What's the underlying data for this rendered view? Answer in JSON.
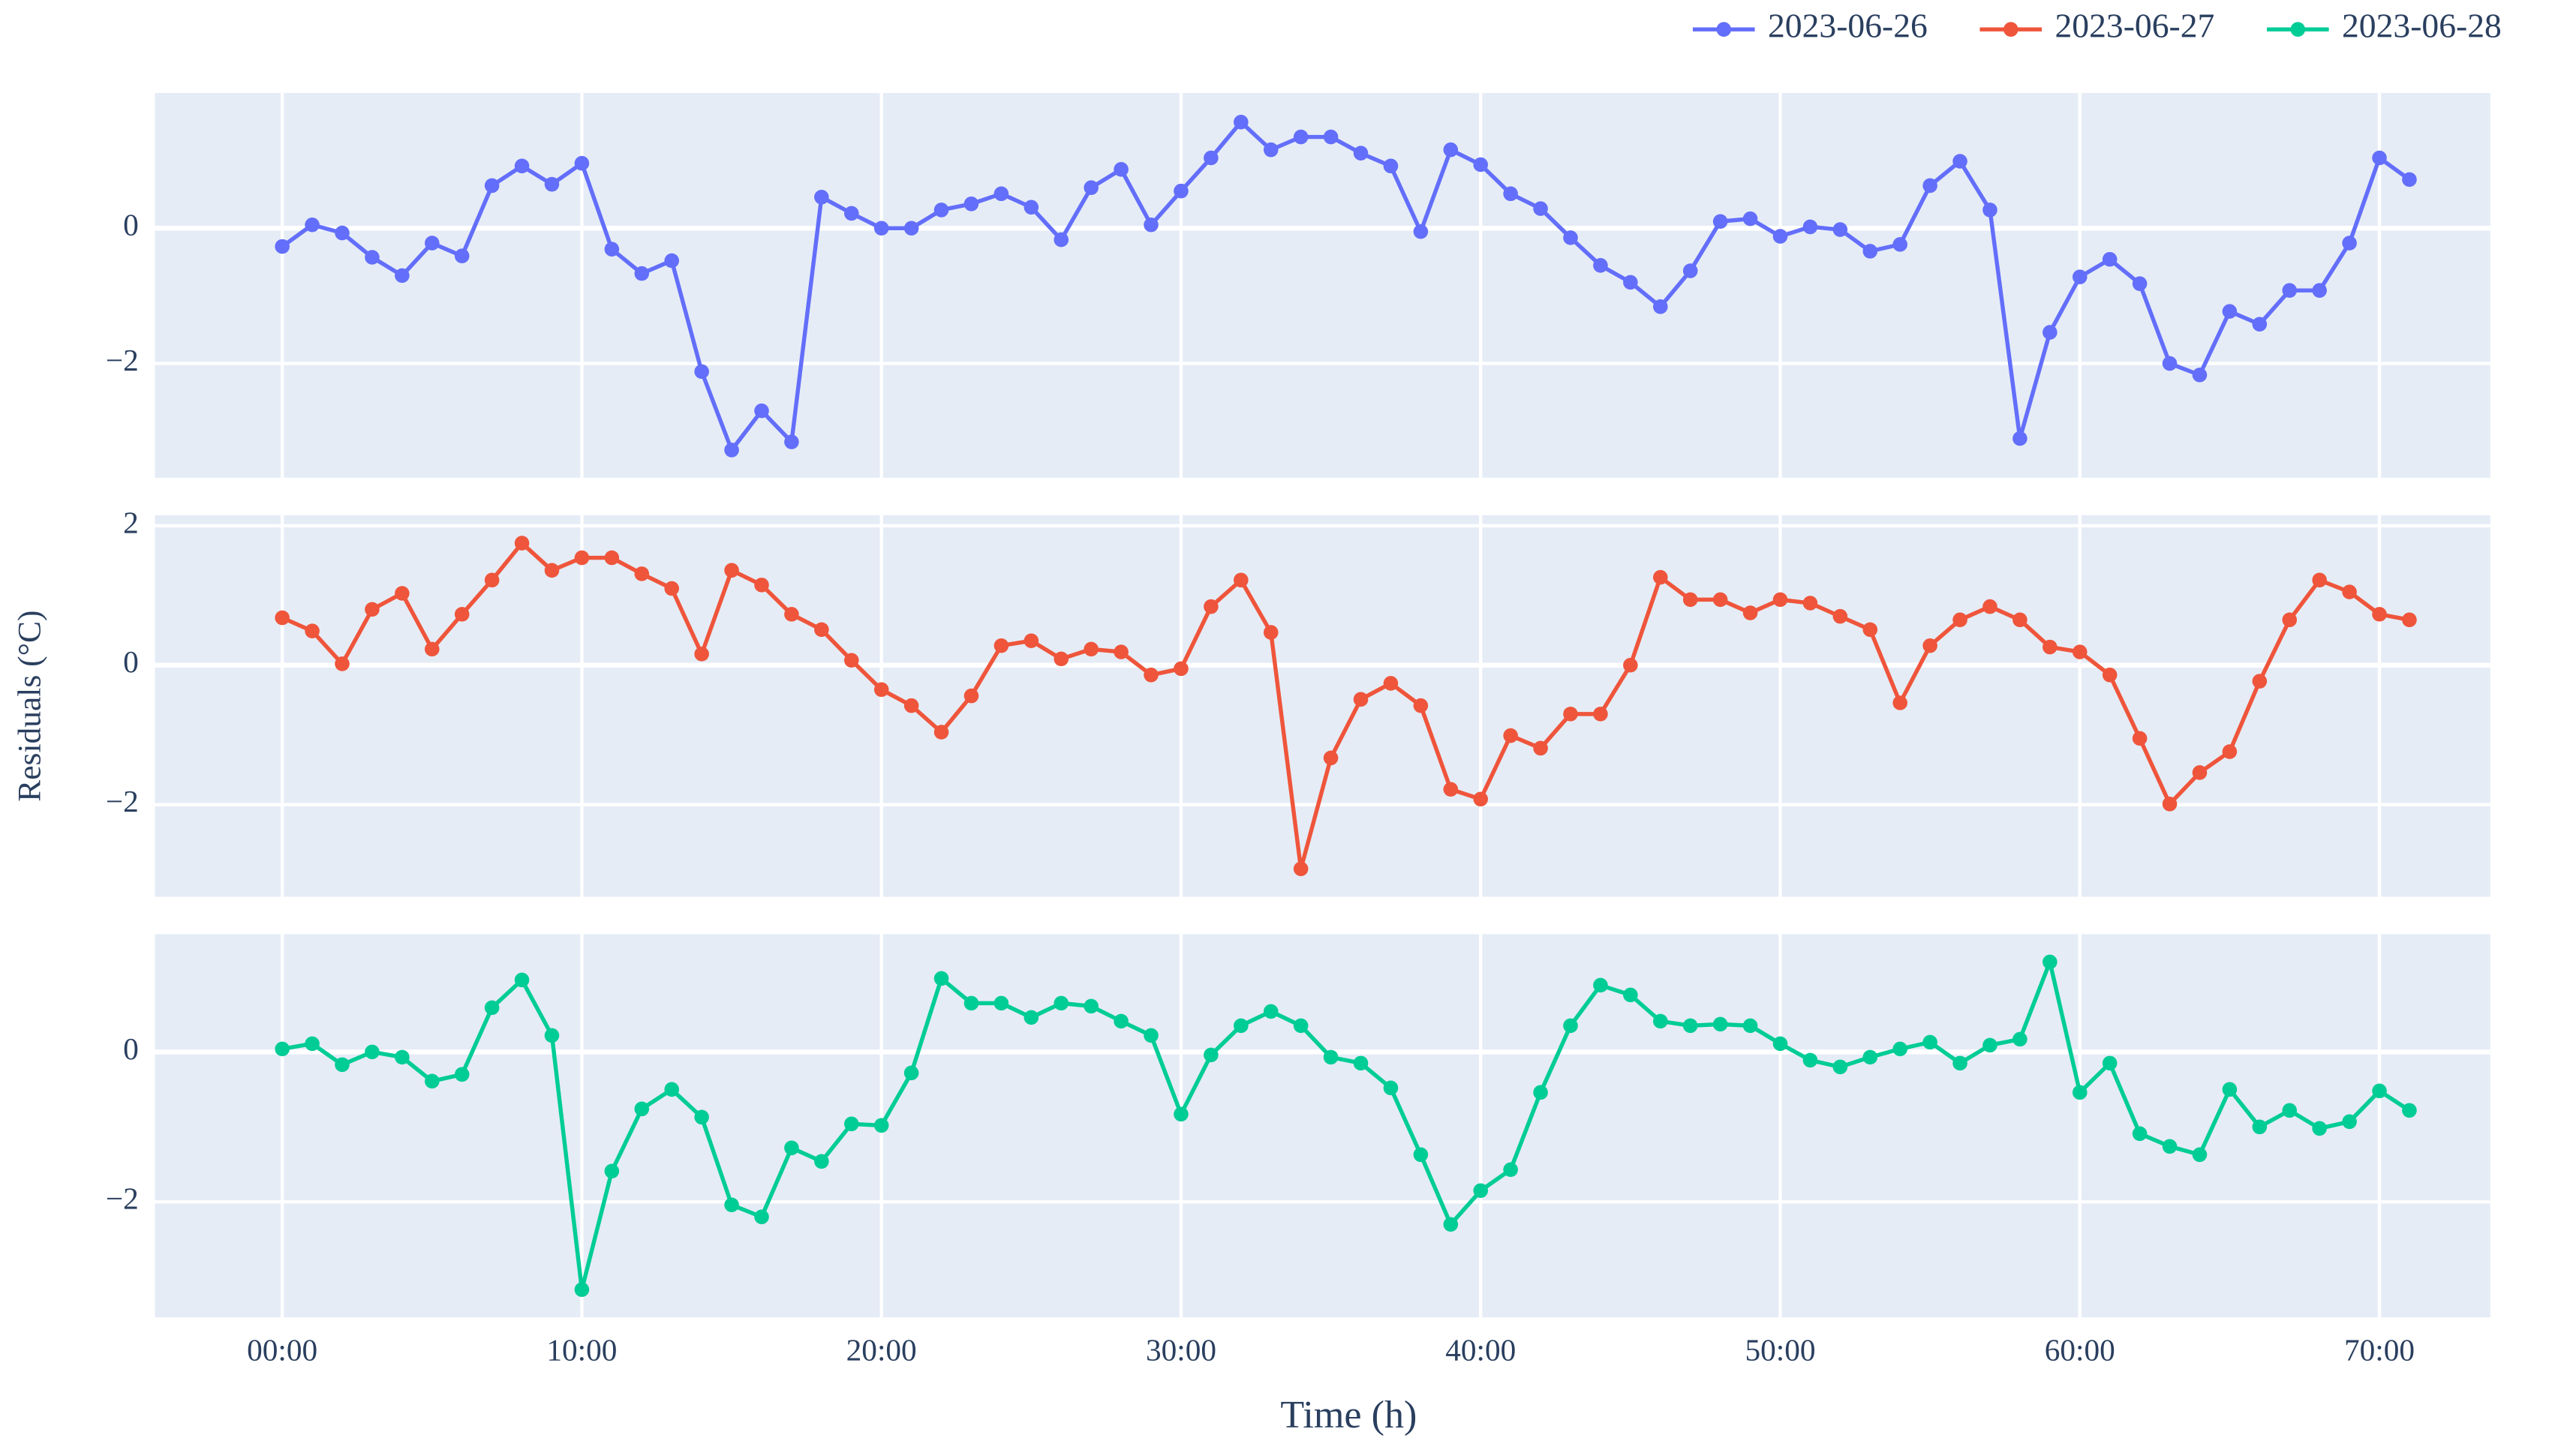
{
  "chart_data": {
    "type": "line",
    "xlabel": "Time (h)",
    "ylabel": "Residuals (°C)",
    "x": [
      0,
      1,
      2,
      3,
      4,
      5,
      6,
      7,
      8,
      9,
      10,
      11,
      12,
      13,
      14,
      15,
      16,
      17,
      18,
      19,
      20,
      21,
      22,
      23,
      24,
      25,
      26,
      27,
      28,
      29,
      30,
      31,
      32,
      33,
      34,
      35,
      36,
      37,
      38,
      39,
      40,
      41,
      42,
      43,
      44,
      45,
      46,
      47,
      48,
      49,
      50,
      51,
      52,
      53,
      54,
      55,
      56,
      57,
      58,
      59,
      60,
      61,
      62,
      63,
      64,
      65,
      66,
      67,
      68,
      69,
      70,
      71
    ],
    "xlim": [
      -4.25,
      73.7
    ],
    "xticks": [
      {
        "value": 0,
        "label": "00:00"
      },
      {
        "value": 10,
        "label": "10:00"
      },
      {
        "value": 20,
        "label": "20:00"
      },
      {
        "value": 30,
        "label": "30:00"
      },
      {
        "value": 40,
        "label": "40:00"
      },
      {
        "value": 50,
        "label": "50:00"
      },
      {
        "value": 60,
        "label": "60:00"
      },
      {
        "value": 70,
        "label": "70:00"
      }
    ],
    "grid": true,
    "legend": "top-right",
    "series": [
      {
        "name": "2023-06-26",
        "color": "#636efa",
        "ylim": [
          -3.69,
          2.0
        ],
        "yticks": [
          -2,
          0
        ],
        "values": [
          -0.27,
          0.05,
          -0.07,
          -0.43,
          -0.7,
          -0.22,
          -0.41,
          0.63,
          0.92,
          0.65,
          0.96,
          -0.31,
          -0.67,
          -0.48,
          -2.12,
          -3.28,
          -2.7,
          -3.16,
          0.46,
          0.22,
          0.0,
          0.0,
          0.27,
          0.36,
          0.51,
          0.31,
          -0.17,
          0.6,
          0.87,
          0.05,
          0.55,
          1.04,
          1.57,
          1.16,
          1.35,
          1.35,
          1.11,
          0.92,
          -0.05,
          1.16,
          0.94,
          0.51,
          0.29,
          -0.14,
          -0.55,
          -0.8,
          -1.16,
          -0.63,
          0.1,
          0.14,
          -0.12,
          0.02,
          -0.02,
          -0.34,
          -0.24,
          0.63,
          0.99,
          0.27,
          -3.11,
          -1.54,
          -0.72,
          -0.46,
          -0.82,
          -2.0,
          -2.17,
          -1.23,
          -1.42,
          -0.92,
          -0.92,
          -0.22,
          1.04,
          0.72
        ]
      },
      {
        "name": "2023-06-27",
        "color": "#ef553b",
        "ylim": [
          -3.32,
          2.15
        ],
        "yticks": [
          -2,
          0,
          2
        ],
        "values": [
          0.68,
          0.49,
          0.02,
          0.8,
          1.03,
          0.23,
          0.73,
          1.22,
          1.75,
          1.36,
          1.54,
          1.54,
          1.31,
          1.1,
          0.16,
          1.36,
          1.15,
          0.73,
          0.51,
          0.07,
          -0.35,
          -0.58,
          -0.96,
          -0.44,
          0.28,
          0.35,
          0.09,
          0.23,
          0.19,
          -0.14,
          -0.05,
          0.84,
          1.22,
          0.47,
          -2.92,
          -1.33,
          -0.49,
          -0.26,
          -0.58,
          -1.78,
          -1.92,
          -1.01,
          -1.19,
          -0.7,
          -0.7,
          0.0,
          1.26,
          0.94,
          0.94,
          0.75,
          0.94,
          0.89,
          0.7,
          0.51,
          -0.54,
          0.28,
          0.65,
          0.84,
          0.65,
          0.26,
          0.19,
          -0.14,
          -1.05,
          -1.99,
          -1.54,
          -1.24,
          -0.23,
          0.65,
          1.22,
          1.05,
          0.73,
          0.65
        ]
      },
      {
        "name": "2023-06-28",
        "color": "#00cc96",
        "ylim": [
          -3.54,
          1.57
        ],
        "yticks": [
          -2,
          0
        ],
        "values": [
          0.04,
          0.11,
          -0.17,
          0.0,
          -0.07,
          -0.39,
          -0.3,
          0.59,
          0.96,
          0.22,
          -3.17,
          -1.59,
          -0.76,
          -0.5,
          -0.87,
          -2.04,
          -2.2,
          -1.28,
          -1.46,
          -0.96,
          -0.98,
          -0.28,
          0.98,
          0.65,
          0.65,
          0.46,
          0.65,
          0.61,
          0.41,
          0.22,
          -0.83,
          -0.04,
          0.35,
          0.54,
          0.35,
          -0.07,
          -0.15,
          -0.48,
          -1.37,
          -2.3,
          -1.85,
          -1.57,
          -0.54,
          0.35,
          0.89,
          0.76,
          0.41,
          0.35,
          0.37,
          0.35,
          0.11,
          -0.11,
          -0.2,
          -0.07,
          0.04,
          0.13,
          -0.15,
          0.09,
          0.17,
          1.2,
          -0.54,
          -0.15,
          -1.09,
          -1.26,
          -1.37,
          -0.5,
          -1.0,
          -0.78,
          -1.02,
          -0.93,
          -0.52,
          -0.78
        ]
      }
    ]
  }
}
